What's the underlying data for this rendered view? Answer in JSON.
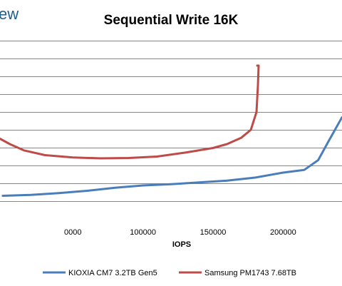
{
  "logo_fragment": "ew",
  "chart_data": {
    "type": "line",
    "title": "Sequential Write 16K",
    "xlabel": "IOPS",
    "ylabel": "",
    "xlim": [
      -2000,
      242000
    ],
    "ylim": [
      0,
      10.2
    ],
    "x_ticks": [
      0,
      50000,
      100000,
      150000,
      200000
    ],
    "x_tick_labels": [
      "0000",
      "100000",
      "150000",
      "200000"
    ],
    "x_tick_label_values": [
      50000,
      100000,
      150000,
      200000
    ],
    "grid": true,
    "legend_position": "bottom",
    "series": [
      {
        "name": "KIOXIA CM7 3.2TB Gen5",
        "color": "#4a7ebb",
        "points": [
          [
            0,
            1.3
          ],
          [
            20000,
            1.35
          ],
          [
            40000,
            1.45
          ],
          [
            60000,
            1.58
          ],
          [
            80000,
            1.75
          ],
          [
            100000,
            1.88
          ],
          [
            120000,
            1.95
          ],
          [
            140000,
            2.05
          ],
          [
            160000,
            2.15
          ],
          [
            180000,
            2.32
          ],
          [
            200000,
            2.6
          ],
          [
            215000,
            2.75
          ],
          [
            225000,
            3.3
          ],
          [
            232000,
            4.3
          ],
          [
            242000,
            5.7
          ]
        ]
      },
      {
        "name": "Samsung PM1743 7.68TB",
        "color": "#be4b48",
        "points": [
          [
            -2000,
            4.5
          ],
          [
            5000,
            4.2
          ],
          [
            15000,
            3.85
          ],
          [
            30000,
            3.58
          ],
          [
            50000,
            3.45
          ],
          [
            70000,
            3.4
          ],
          [
            90000,
            3.42
          ],
          [
            110000,
            3.5
          ],
          [
            130000,
            3.72
          ],
          [
            150000,
            3.98
          ],
          [
            160000,
            4.2
          ],
          [
            170000,
            4.55
          ],
          [
            177000,
            5.0
          ],
          [
            181000,
            6.0
          ],
          [
            182000,
            7.5
          ],
          [
            182500,
            8.6
          ],
          [
            181500,
            8.6
          ]
        ]
      }
    ]
  }
}
